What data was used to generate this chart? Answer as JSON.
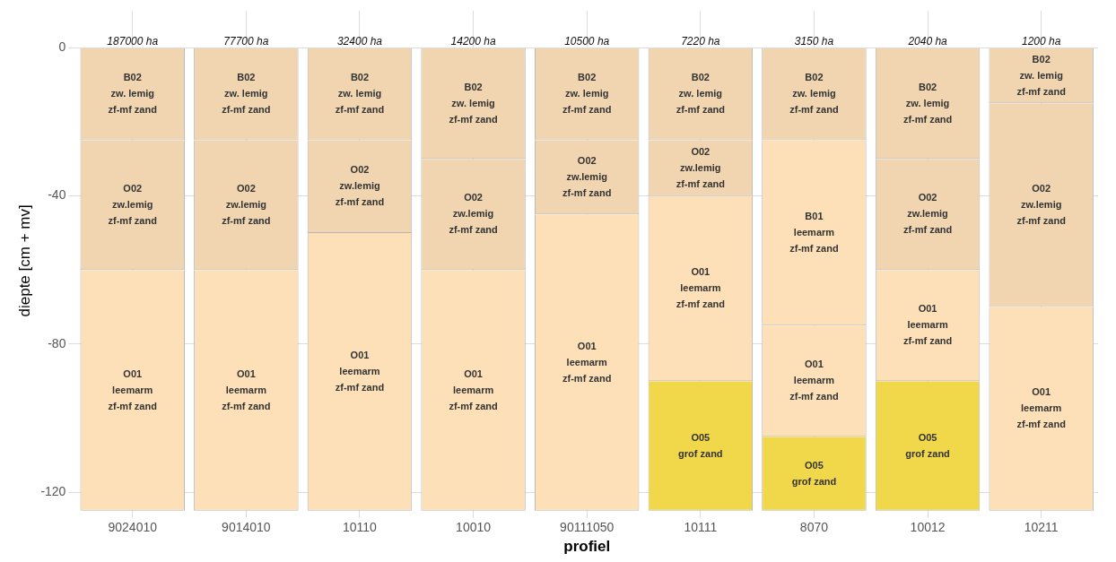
{
  "chart_data": {
    "type": "bar",
    "stacked": true,
    "xlabel": "profiel",
    "ylabel": "diepte [cm + mv]",
    "categories": [
      "9024010",
      "9014010",
      "10110",
      "10010",
      "90111050",
      "10111",
      "8070",
      "10012",
      "10211"
    ],
    "ylim": [
      -125,
      10
    ],
    "yticks": [
      0,
      -40,
      -80,
      -120
    ],
    "grid": true,
    "legend": false,
    "series": [
      {
        "values": [
          -25,
          -25,
          -25,
          -30,
          -25,
          -25,
          -25,
          -30,
          -15
        ],
        "colors": [
          "#f0d5b0",
          "#f0d5b0",
          "#f0d5b0",
          "#f0d5b0",
          "#f0d5b0",
          "#f0d5b0",
          "#f0d5b0",
          "#f0d5b0",
          "#f0d5b0"
        ],
        "value_labels": [
          "B02\nzw. lemig\nzf-mf zand",
          "B02\nzw. lemig\nzf-mf zand",
          "B02\nzw. lemig\nzf-mf zand",
          "B02\nzw. lemig\nzf-mf zand",
          "B02\nzw. lemig\nzf-mf zand",
          "B02\nzw. lemig\nzf-mf zand",
          "B02\nzw. lemig\nzf-mf zand",
          "B02\nzw. lemig\nzf-mf zand",
          "B02\nzw. lemig\nzf-mf zand"
        ]
      },
      {
        "values": [
          -35,
          -35,
          -25,
          -30,
          -20,
          -15,
          -50,
          -30,
          -55
        ],
        "colors": [
          "#f0d5b0",
          "#f0d5b0",
          "#f0d5b0",
          "#f0d5b0",
          "#f0d5b0",
          "#f0d5b0",
          "#fde0b8",
          "#f0d5b0",
          "#f0d5b0"
        ],
        "value_labels": [
          "O02\nzw.lemig\nzf-mf zand",
          "O02\nzw.lemig\nzf-mf zand",
          "O02\nzw.lemig\nzf-mf zand",
          "O02\nzw.lemig\nzf-mf zand",
          "O02\nzw.lemig\nzf-mf zand",
          "O02\nzw.lemig\nzf-mf zand",
          "B01\nleemarm\nzf-mf zand",
          "O02\nzw.lemig\nzf-mf zand",
          "O02\nzw.lemig\nzf-mf zand"
        ]
      },
      {
        "values": [
          -65,
          -65,
          -75,
          -65,
          -80,
          -50,
          -30,
          -30,
          -55
        ],
        "colors": [
          "#fde0b8",
          "#fde0b8",
          "#fde0b8",
          "#fde0b8",
          "#fde0b8",
          "#fde0b8",
          "#fde0b8",
          "#fde0b8",
          "#fde0b8"
        ],
        "value_labels": [
          "O01\nleemarm\nzf-mf zand",
          "O01\nleemarm\nzf-mf zand",
          "O01\nleemarm\nzf-mf zand",
          "O01\nleemarm\nzf-mf zand",
          "O01\nleemarm\nzf-mf zand",
          "O01\nleemarm\nzf-mf zand",
          "O01\nleemarm\nzf-mf zand",
          "O01\nleemarm\nzf-mf zand",
          "O01\nleemarm\nzf-mf zand"
        ]
      },
      {
        "values": [
          null,
          null,
          null,
          null,
          null,
          -35,
          -20,
          -35,
          null
        ],
        "colors": [
          "#f0d84a",
          "#f0d84a",
          "#f0d84a",
          "#f0d84a",
          "#f0d84a",
          "#f0d84a",
          "#f0d84a",
          "#f0d84a",
          "#f0d84a"
        ],
        "value_labels": [
          null,
          null,
          null,
          null,
          null,
          "O05\ngrof zand",
          "O05\ngrof zand",
          "O05\ngrof zand",
          null
        ]
      }
    ],
    "annotations": [
      {
        "text": "187000 ha",
        "x": "9024010",
        "y": 0
      },
      {
        "text": "77700 ha",
        "x": "9014010",
        "y": 0
      },
      {
        "text": "32400 ha",
        "x": "10110",
        "y": 0
      },
      {
        "text": "14200 ha",
        "x": "10010",
        "y": 0
      },
      {
        "text": "10500 ha",
        "x": "90111050",
        "y": 0
      },
      {
        "text": "7220 ha",
        "x": "10111",
        "y": 0
      },
      {
        "text": "3150 ha",
        "x": "8070",
        "y": 0
      },
      {
        "text": "2040 ha",
        "x": "10012",
        "y": 0
      },
      {
        "text": "1200 ha",
        "x": "10211",
        "y": 0
      }
    ]
  }
}
